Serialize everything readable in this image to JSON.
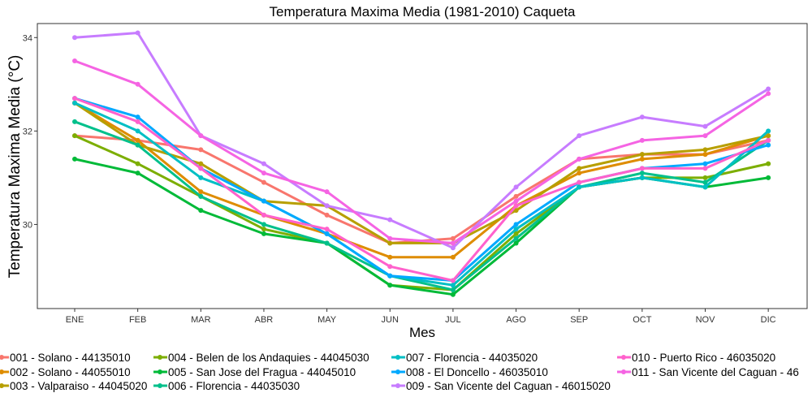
{
  "chart_data": {
    "type": "line",
    "title": "Temperatura Maxima Media (1981-2010)  Caqueta",
    "xlabel": "Mes",
    "ylabel": "Temperatura Maxima Media  (°C)",
    "categories": [
      "ENE",
      "FEB",
      "MAR",
      "ABR",
      "MAY",
      "JUN",
      "JUL",
      "AGO",
      "SEP",
      "OCT",
      "NOV",
      "DIC"
    ],
    "ylim": [
      28.2,
      34.3
    ],
    "yticks": [
      30,
      32,
      34
    ],
    "grid": false,
    "legend_position": "bottom",
    "series": [
      {
        "name": "001 - Solano - 44135010",
        "color": "#F8766D",
        "values": [
          31.9,
          31.8,
          31.6,
          30.9,
          30.2,
          29.6,
          29.7,
          30.6,
          31.4,
          31.5,
          31.5,
          31.8
        ]
      },
      {
        "name": "002 - Solano - 44055010",
        "color": "#DE8C00",
        "values": [
          32.6,
          31.8,
          30.7,
          30.2,
          29.8,
          29.3,
          29.3,
          30.4,
          31.1,
          31.4,
          31.5,
          31.9
        ]
      },
      {
        "name": "003 - Valparaiso - 44045020",
        "color": "#B79F00",
        "values": [
          32.6,
          31.7,
          31.3,
          30.5,
          30.4,
          29.6,
          29.6,
          30.3,
          31.2,
          31.5,
          31.6,
          31.9
        ]
      },
      {
        "name": "004 - Belen de los Andaquies - 44045030",
        "color": "#7CAE00",
        "values": [
          31.9,
          31.3,
          30.6,
          29.9,
          29.6,
          28.7,
          28.6,
          29.8,
          30.8,
          31.0,
          31.0,
          31.3
        ]
      },
      {
        "name": "005 - San Jose del Fragua - 44045010",
        "color": "#00BA38",
        "values": [
          31.4,
          31.1,
          30.3,
          29.8,
          29.6,
          28.7,
          28.5,
          29.6,
          30.8,
          31.0,
          30.8,
          31.0
        ]
      },
      {
        "name": "006 - Florencia - 44035030",
        "color": "#00C08B",
        "values": [
          32.2,
          31.7,
          30.6,
          30.0,
          29.6,
          28.9,
          28.6,
          29.7,
          30.8,
          31.1,
          30.9,
          31.8
        ]
      },
      {
        "name": "007 - Florencia - 44035020",
        "color": "#00BFC4",
        "values": [
          32.6,
          32.0,
          31.0,
          30.5,
          29.8,
          28.9,
          28.7,
          29.9,
          30.8,
          31.0,
          30.8,
          32.0
        ]
      },
      {
        "name": "008 - El Doncello - 46035010",
        "color": "#00A9FF",
        "values": [
          32.7,
          32.3,
          31.2,
          30.5,
          29.8,
          28.9,
          28.8,
          30.0,
          30.9,
          31.2,
          31.3,
          31.7
        ]
      },
      {
        "name": "009 - San Vicente del Caguan - 46015020",
        "color": "#C77CFF",
        "values": [
          34.0,
          34.1,
          31.9,
          31.3,
          30.4,
          30.1,
          29.5,
          30.8,
          31.9,
          32.3,
          32.1,
          32.9
        ]
      },
      {
        "name": "010 - Puerto Rico - 46035020",
        "color": "#FF61CC",
        "values": [
          32.7,
          32.2,
          31.2,
          30.2,
          29.9,
          29.1,
          28.8,
          30.4,
          30.9,
          31.2,
          31.2,
          31.8
        ]
      },
      {
        "name": "011 - San Vicente del Caguan - 46",
        "color": "#F564E3",
        "values": [
          33.5,
          33.0,
          31.9,
          31.1,
          30.7,
          29.7,
          29.6,
          30.5,
          31.4,
          31.8,
          31.9,
          32.8
        ]
      }
    ]
  }
}
